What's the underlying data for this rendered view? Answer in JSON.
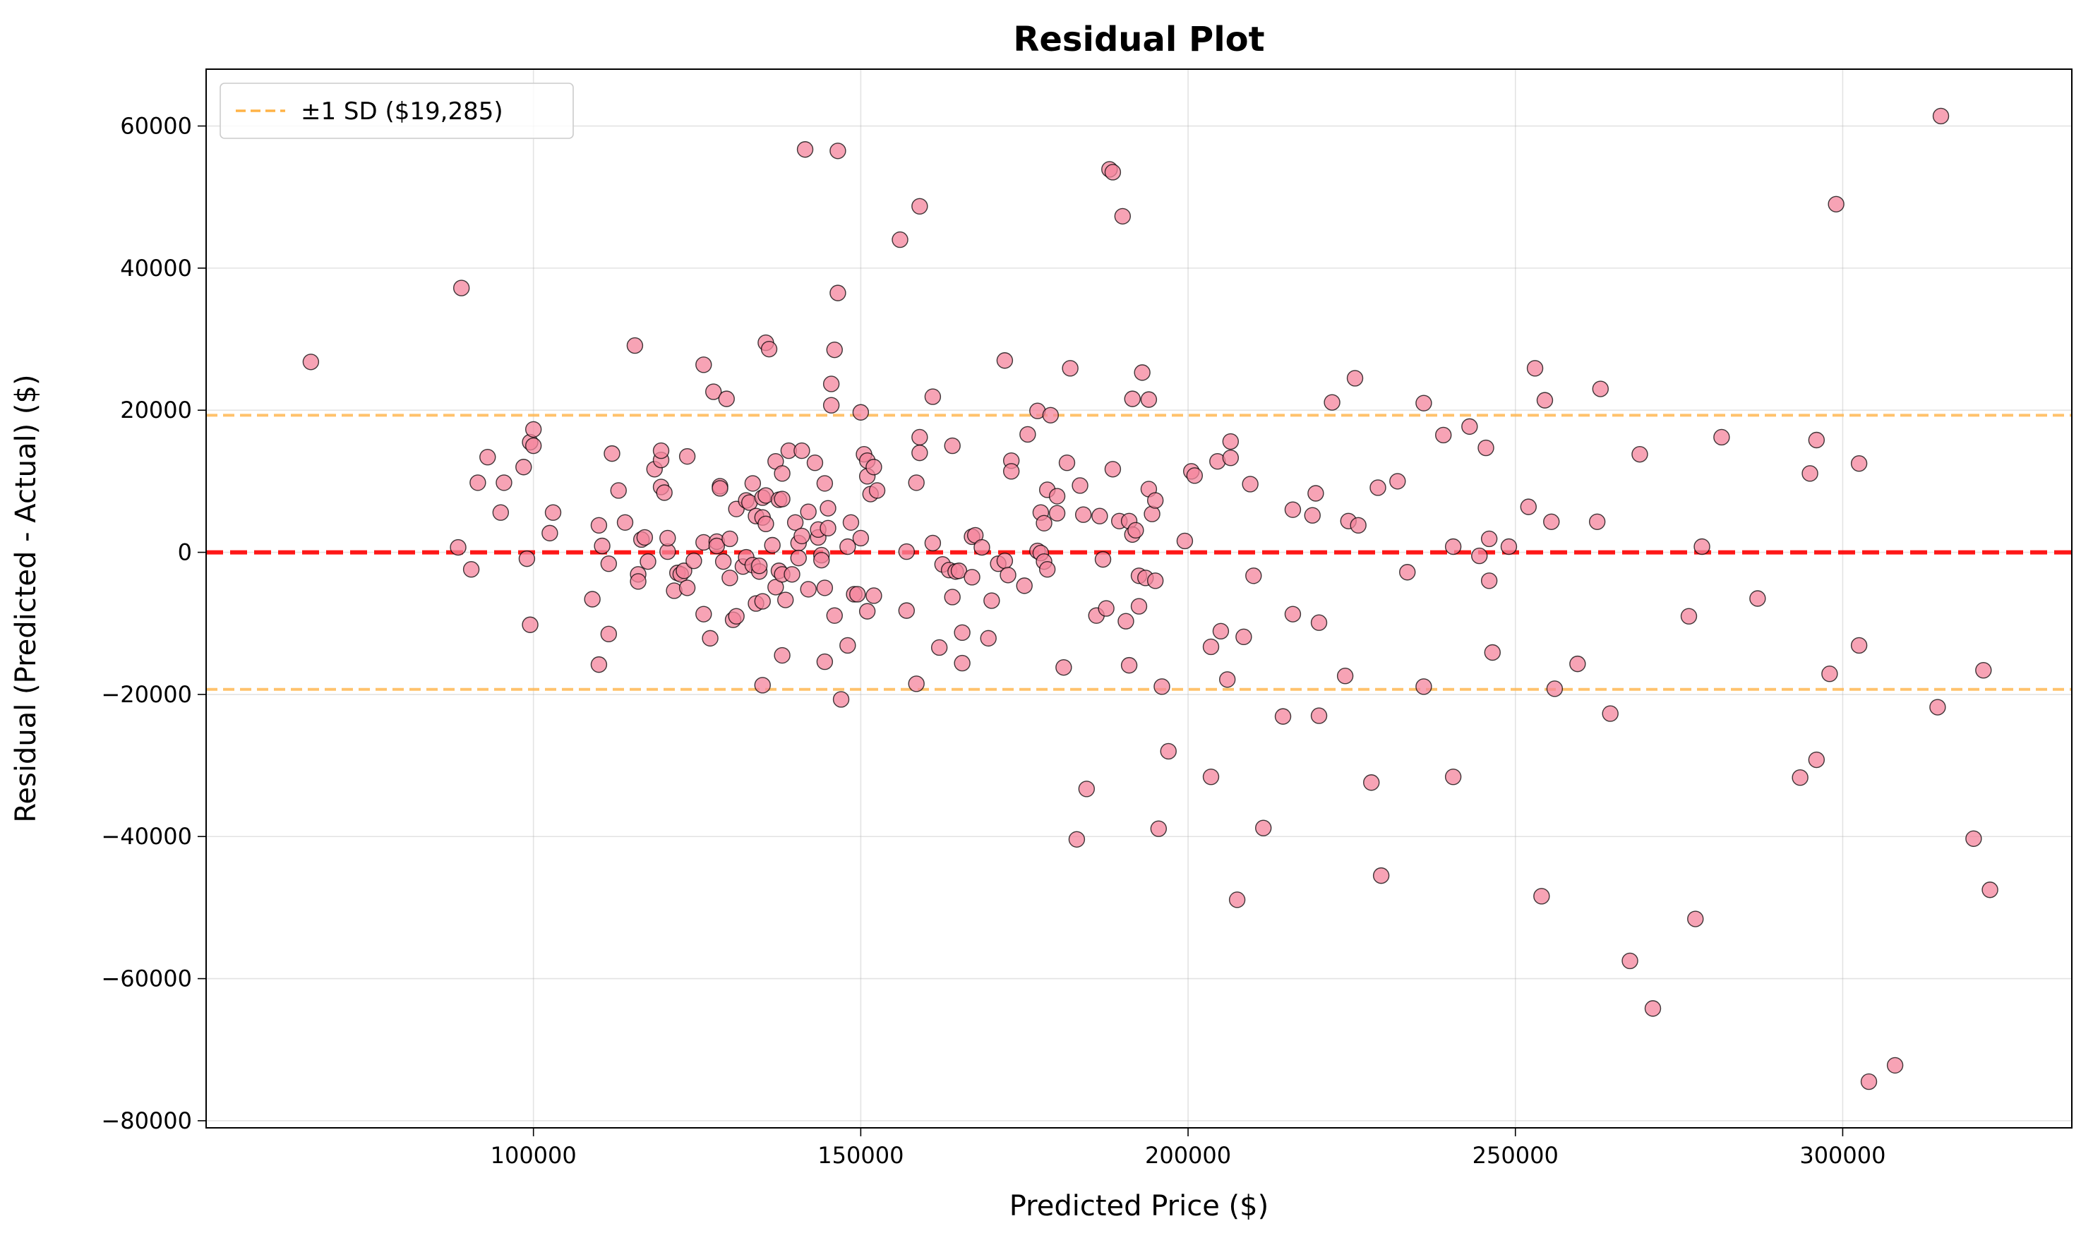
{
  "chart_data": {
    "type": "scatter",
    "title": "Residual Plot",
    "xlabel": "Predicted Price ($)",
    "ylabel": "Residual (Predicted - Actual) ($)",
    "xlim": [
      50000,
      335000
    ],
    "ylim": [
      -81000,
      68000
    ],
    "x_ticks": [
      100000,
      150000,
      200000,
      250000,
      300000
    ],
    "x_tick_labels": [
      "100000",
      "150000",
      "200000",
      "250000",
      "300000"
    ],
    "y_ticks": [
      -80000,
      -60000,
      -40000,
      -20000,
      0,
      20000,
      40000,
      60000
    ],
    "y_tick_labels": [
      "−80000",
      "−60000",
      "−40000",
      "−20000",
      "0",
      "20000",
      "40000",
      "60000"
    ],
    "grid": true,
    "legend": {
      "placement": "top-left",
      "entries": [
        {
          "label": "±1 SD ($19,285)",
          "color": "#ffb347",
          "style": "dashed"
        }
      ]
    },
    "reference_lines": [
      {
        "y": 0,
        "color": "#ff0000",
        "style": "dashed"
      },
      {
        "y": 19285,
        "color": "#ffb347",
        "style": "dashed"
      },
      {
        "y": -19285,
        "color": "#ffb347",
        "style": "dashed"
      }
    ],
    "point_color": "#f4849c",
    "points": [
      [
        66000,
        26800
      ],
      [
        88500,
        700
      ],
      [
        89000,
        37200
      ],
      [
        90500,
        -2400
      ],
      [
        91500,
        9800
      ],
      [
        93000,
        13400
      ],
      [
        95000,
        5600
      ],
      [
        95500,
        9800
      ],
      [
        98500,
        12000
      ],
      [
        99000,
        -900
      ],
      [
        99500,
        -10200
      ],
      [
        99500,
        15500
      ],
      [
        100000,
        17300
      ],
      [
        100000,
        15000
      ],
      [
        102500,
        2700
      ],
      [
        103000,
        5600
      ],
      [
        109000,
        -6600
      ],
      [
        110000,
        -15800
      ],
      [
        110000,
        3800
      ],
      [
        110500,
        900
      ],
      [
        111500,
        -11500
      ],
      [
        111500,
        -1600
      ],
      [
        112000,
        13900
      ],
      [
        113000,
        8700
      ],
      [
        114000,
        4200
      ],
      [
        115500,
        29100
      ],
      [
        116000,
        -3100
      ],
      [
        116000,
        -4100
      ],
      [
        116500,
        1800
      ],
      [
        117000,
        2100
      ],
      [
        117500,
        -1300
      ],
      [
        118500,
        11700
      ],
      [
        119500,
        13000
      ],
      [
        119500,
        14300
      ],
      [
        119500,
        9200
      ],
      [
        120000,
        8400
      ],
      [
        120500,
        100
      ],
      [
        120500,
        2000
      ],
      [
        121500,
        -5400
      ],
      [
        122000,
        -2900
      ],
      [
        122500,
        -3100
      ],
      [
        123000,
        -2600
      ],
      [
        123500,
        13500
      ],
      [
        123500,
        -5000
      ],
      [
        124500,
        -1200
      ],
      [
        126000,
        26400
      ],
      [
        126000,
        1400
      ],
      [
        126000,
        -8700
      ],
      [
        127000,
        -12100
      ],
      [
        127500,
        22600
      ],
      [
        128000,
        1500
      ],
      [
        128000,
        900
      ],
      [
        128500,
        9300
      ],
      [
        128500,
        9000
      ],
      [
        129000,
        -1300
      ],
      [
        129500,
        21600
      ],
      [
        130000,
        1900
      ],
      [
        130000,
        -3600
      ],
      [
        130500,
        -9500
      ],
      [
        131000,
        -9000
      ],
      [
        131000,
        6100
      ],
      [
        132000,
        -2000
      ],
      [
        132500,
        -700
      ],
      [
        132500,
        7300
      ],
      [
        133000,
        7000
      ],
      [
        133500,
        -1800
      ],
      [
        133500,
        9700
      ],
      [
        134000,
        -7200
      ],
      [
        134000,
        5100
      ],
      [
        134500,
        -2700
      ],
      [
        134500,
        -1900
      ],
      [
        135000,
        -18700
      ],
      [
        135000,
        -6900
      ],
      [
        135000,
        7700
      ],
      [
        135000,
        4900
      ],
      [
        135500,
        4000
      ],
      [
        135500,
        8000
      ],
      [
        135500,
        29500
      ],
      [
        136000,
        28600
      ],
      [
        136500,
        1000
      ],
      [
        137000,
        12800
      ],
      [
        137000,
        -4900
      ],
      [
        137500,
        7400
      ],
      [
        137500,
        -2600
      ],
      [
        138000,
        -3100
      ],
      [
        138000,
        -14500
      ],
      [
        138000,
        7500
      ],
      [
        138000,
        11100
      ],
      [
        138500,
        -6700
      ],
      [
        139000,
        14300
      ],
      [
        139500,
        -3100
      ],
      [
        140000,
        4200
      ],
      [
        140500,
        1300
      ],
      [
        140500,
        -800
      ],
      [
        141000,
        2300
      ],
      [
        141000,
        14300
      ],
      [
        141500,
        56700
      ],
      [
        142000,
        -5200
      ],
      [
        142000,
        5700
      ],
      [
        143000,
        12600
      ],
      [
        143500,
        2100
      ],
      [
        143500,
        3200
      ],
      [
        144000,
        -400
      ],
      [
        144000,
        -1100
      ],
      [
        144500,
        -15400
      ],
      [
        144500,
        -5000
      ],
      [
        144500,
        9700
      ],
      [
        145000,
        6200
      ],
      [
        145000,
        3400
      ],
      [
        145500,
        20700
      ],
      [
        145500,
        23700
      ],
      [
        146000,
        28500
      ],
      [
        146000,
        -8900
      ],
      [
        146500,
        36500
      ],
      [
        146500,
        56500
      ],
      [
        147000,
        -20700
      ],
      [
        148000,
        -13100
      ],
      [
        148000,
        800
      ],
      [
        148500,
        4200
      ],
      [
        149000,
        -5900
      ],
      [
        149500,
        -5900
      ],
      [
        150000,
        2000
      ],
      [
        150000,
        19700
      ],
      [
        150500,
        13800
      ],
      [
        151000,
        12900
      ],
      [
        151000,
        10700
      ],
      [
        151000,
        -8300
      ],
      [
        151500,
        8200
      ],
      [
        152000,
        -6100
      ],
      [
        152000,
        12000
      ],
      [
        152500,
        8700
      ],
      [
        156000,
        44000
      ],
      [
        157000,
        -8200
      ],
      [
        157000,
        100
      ],
      [
        158500,
        -18500
      ],
      [
        158500,
        9800
      ],
      [
        159000,
        48700
      ],
      [
        159000,
        16200
      ],
      [
        159000,
        14000
      ],
      [
        161000,
        1300
      ],
      [
        161000,
        21900
      ],
      [
        162000,
        -13400
      ],
      [
        162500,
        -1700
      ],
      [
        163500,
        -2500
      ],
      [
        164000,
        -6300
      ],
      [
        164000,
        15000
      ],
      [
        164500,
        -2700
      ],
      [
        165000,
        -2600
      ],
      [
        165500,
        -15600
      ],
      [
        165500,
        -11300
      ],
      [
        167000,
        -3500
      ],
      [
        167000,
        2200
      ],
      [
        167500,
        2400
      ],
      [
        168500,
        700
      ],
      [
        169500,
        -12100
      ],
      [
        170000,
        -6800
      ],
      [
        171000,
        -1600
      ],
      [
        172000,
        27000
      ],
      [
        172000,
        -1200
      ],
      [
        172500,
        -3200
      ],
      [
        173000,
        12900
      ],
      [
        173000,
        11400
      ],
      [
        175000,
        -4700
      ],
      [
        175500,
        16600
      ],
      [
        177000,
        19900
      ],
      [
        177000,
        200
      ],
      [
        177500,
        -100
      ],
      [
        177500,
        5600
      ],
      [
        178000,
        -1300
      ],
      [
        178000,
        4100
      ],
      [
        178500,
        -2400
      ],
      [
        178500,
        8800
      ],
      [
        179000,
        19300
      ],
      [
        180000,
        7900
      ],
      [
        180000,
        5500
      ],
      [
        181000,
        -16200
      ],
      [
        181500,
        12600
      ],
      [
        182000,
        25900
      ],
      [
        183000,
        -40400
      ],
      [
        183500,
        9400
      ],
      [
        184000,
        5300
      ],
      [
        184500,
        -33300
      ],
      [
        186000,
        -8900
      ],
      [
        186500,
        5100
      ],
      [
        187000,
        -1000
      ],
      [
        187500,
        -7900
      ],
      [
        188000,
        53900
      ],
      [
        188500,
        53500
      ],
      [
        188500,
        11700
      ],
      [
        189500,
        4400
      ],
      [
        190000,
        47300
      ],
      [
        190500,
        -9700
      ],
      [
        191000,
        -15900
      ],
      [
        191000,
        4400
      ],
      [
        191500,
        21600
      ],
      [
        191500,
        2500
      ],
      [
        192000,
        3100
      ],
      [
        192500,
        -7600
      ],
      [
        192500,
        -3300
      ],
      [
        193000,
        25300
      ],
      [
        193500,
        -3600
      ],
      [
        194000,
        21500
      ],
      [
        194000,
        8900
      ],
      [
        194500,
        5400
      ],
      [
        195000,
        7300
      ],
      [
        195000,
        -4000
      ],
      [
        195500,
        -38900
      ],
      [
        196000,
        -18900
      ],
      [
        197000,
        -28000
      ],
      [
        199500,
        1600
      ],
      [
        200500,
        11400
      ],
      [
        201000,
        10800
      ],
      [
        203500,
        -13300
      ],
      [
        203500,
        -31600
      ],
      [
        204500,
        12800
      ],
      [
        205000,
        -11100
      ],
      [
        206000,
        -17900
      ],
      [
        206500,
        15600
      ],
      [
        206500,
        13300
      ],
      [
        207500,
        -48900
      ],
      [
        208500,
        -11900
      ],
      [
        209500,
        9600
      ],
      [
        210000,
        -3300
      ],
      [
        211500,
        -38800
      ],
      [
        214500,
        -23100
      ],
      [
        216000,
        6000
      ],
      [
        216000,
        -8700
      ],
      [
        219000,
        5200
      ],
      [
        219500,
        8300
      ],
      [
        220000,
        -9900
      ],
      [
        220000,
        -23000
      ],
      [
        222000,
        21100
      ],
      [
        224000,
        -17400
      ],
      [
        224500,
        4400
      ],
      [
        225500,
        24500
      ],
      [
        226000,
        3800
      ],
      [
        228000,
        -32400
      ],
      [
        229000,
        9100
      ],
      [
        229500,
        -45500
      ],
      [
        232000,
        10000
      ],
      [
        233500,
        -2800
      ],
      [
        236000,
        -18900
      ],
      [
        236000,
        21000
      ],
      [
        239000,
        16500
      ],
      [
        240500,
        800
      ],
      [
        240500,
        -31600
      ],
      [
        243000,
        17700
      ],
      [
        244500,
        -500
      ],
      [
        245500,
        14700
      ],
      [
        246000,
        -4000
      ],
      [
        246000,
        1900
      ],
      [
        246500,
        -14100
      ],
      [
        249000,
        800
      ],
      [
        252000,
        6400
      ],
      [
        253000,
        25900
      ],
      [
        254000,
        -48400
      ],
      [
        254500,
        21400
      ],
      [
        255500,
        4300
      ],
      [
        256000,
        -19200
      ],
      [
        259500,
        -15700
      ],
      [
        262500,
        4300
      ],
      [
        263000,
        23000
      ],
      [
        264500,
        -22700
      ],
      [
        267500,
        -57500
      ],
      [
        269000,
        13800
      ],
      [
        271000,
        -64200
      ],
      [
        276500,
        -9000
      ],
      [
        277500,
        -51600
      ],
      [
        278500,
        800
      ],
      [
        281500,
        16200
      ],
      [
        287000,
        -6500
      ],
      [
        293500,
        -31700
      ],
      [
        295000,
        11100
      ],
      [
        296000,
        -29200
      ],
      [
        296000,
        15800
      ],
      [
        298000,
        -17100
      ],
      [
        299000,
        49000
      ],
      [
        302500,
        12500
      ],
      [
        302500,
        -13100
      ],
      [
        304000,
        -74500
      ],
      [
        308000,
        -72200
      ],
      [
        314500,
        -21800
      ],
      [
        315000,
        61400
      ],
      [
        320000,
        -40300
      ],
      [
        321500,
        -16600
      ],
      [
        322500,
        -47500
      ]
    ]
  }
}
